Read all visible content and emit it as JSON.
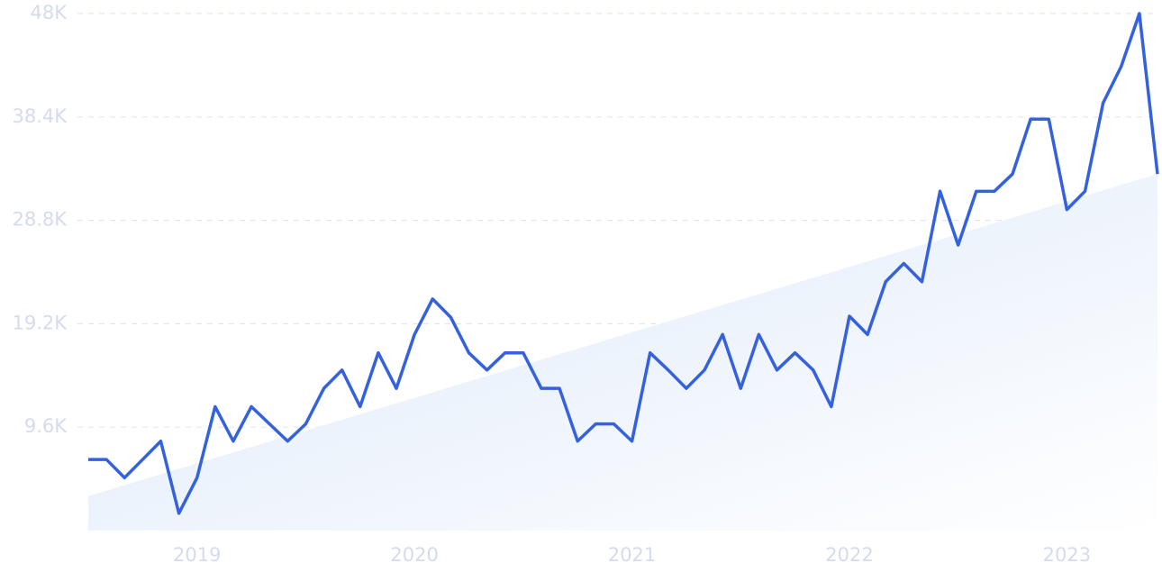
{
  "chart_data": {
    "type": "line",
    "categories": [
      null,
      null,
      null,
      null,
      null,
      null,
      "2019",
      null,
      null,
      null,
      null,
      null,
      null,
      null,
      null,
      null,
      null,
      null,
      "2020",
      null,
      null,
      null,
      null,
      null,
      null,
      null,
      null,
      null,
      null,
      null,
      "2021",
      null,
      null,
      null,
      null,
      null,
      null,
      null,
      null,
      null,
      null,
      null,
      "2022",
      null,
      null,
      null,
      null,
      null,
      null,
      null,
      null,
      null,
      null,
      null,
      "2023",
      null,
      null,
      null,
      null,
      null
    ],
    "values": [
      6600,
      6600,
      4900,
      6600,
      8300,
      1600,
      4900,
      11500,
      8300,
      11500,
      9900,
      8300,
      9900,
      13200,
      14900,
      11500,
      16500,
      13200,
      18200,
      21500,
      19800,
      16500,
      14900,
      16500,
      16500,
      13200,
      13200,
      8300,
      9900,
      9900,
      8300,
      16500,
      14900,
      13200,
      14900,
      18200,
      13200,
      18200,
      14900,
      16500,
      14900,
      11500,
      19900,
      18200,
      23100,
      24800,
      23100,
      31500,
      26500,
      31500,
      31500,
      33100,
      38200,
      38200,
      29800,
      31500,
      39700,
      43100,
      48000,
      33100
    ],
    "color": "#3461dd",
    "trend": [
      3200,
      33100
    ],
    "trend_color": "#dce8f9",
    "ylim": [
      0,
      48000
    ],
    "yticks": [
      {
        "value": 9600,
        "label": "9.6K"
      },
      {
        "value": 19200,
        "label": "19.2K"
      },
      {
        "value": 28800,
        "label": "28.8K"
      },
      {
        "value": 38400,
        "label": "38.4K"
      },
      {
        "value": 48000,
        "label": "48K"
      }
    ],
    "grid": true
  }
}
